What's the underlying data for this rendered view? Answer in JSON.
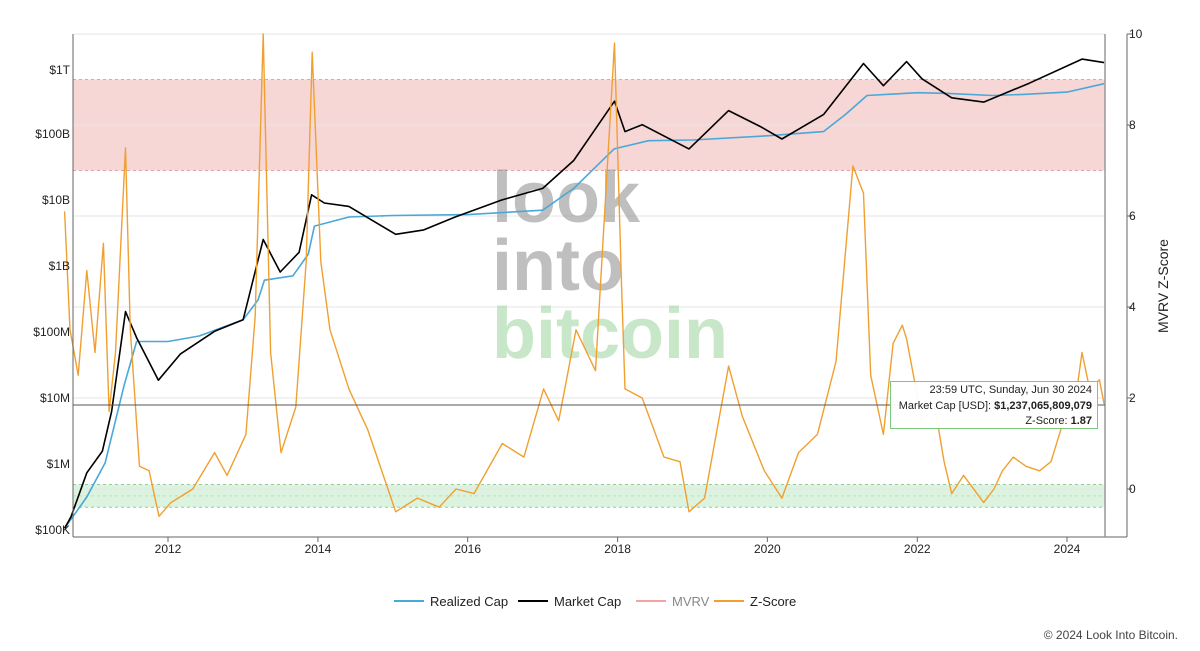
{
  "chart_data": {
    "type": "line",
    "x_ticks": [
      "2012",
      "2014",
      "2016",
      "2018",
      "2020",
      "2022",
      "2024"
    ],
    "y_left_ticks": [
      "$100K",
      "$1M",
      "$10M",
      "$100M",
      "$1B",
      "$10B",
      "$100B",
      "$1T"
    ],
    "y_left_scale": "log",
    "y_left_range": [
      100000,
      3000000000000
    ],
    "y_right_ticks": [
      "0",
      "2",
      "4",
      "6",
      "8",
      "10"
    ],
    "y_right_range": [
      -1,
      10
    ],
    "y_right_label": "MVRV Z-Score",
    "x_range": [
      "2010-08-15",
      "2024-08-20"
    ],
    "bands": [
      {
        "axis": "right",
        "from": 7,
        "to": 9,
        "color": "#f7d6d6"
      },
      {
        "axis": "right",
        "from": -0.4,
        "to": 0.1,
        "color": "#dcf3df"
      }
    ],
    "series": [
      {
        "name": "Realized Cap",
        "color": "#4aa8d8",
        "axis": "left",
        "points": [
          [
            "2010-08-15",
            100000
          ],
          [
            "2010-12-01",
            300000
          ],
          [
            "2011-03-01",
            1000000
          ],
          [
            "2011-06-01",
            15000000
          ],
          [
            "2011-08-01",
            70000000
          ],
          [
            "2012-01-01",
            70000000
          ],
          [
            "2012-06-01",
            85000000
          ],
          [
            "2013-01-01",
            150000000
          ],
          [
            "2013-03-15",
            300000000
          ],
          [
            "2013-04-15",
            600000000
          ],
          [
            "2013-09-01",
            700000000
          ],
          [
            "2013-11-15",
            1500000000
          ],
          [
            "2013-12-15",
            4000000000
          ],
          [
            "2014-06-01",
            5500000000
          ],
          [
            "2015-01-01",
            5800000000
          ],
          [
            "2016-01-01",
            6000000000
          ],
          [
            "2017-01-01",
            7000000000
          ],
          [
            "2017-06-01",
            15000000000
          ],
          [
            "2017-12-15",
            60000000000
          ],
          [
            "2018-06-01",
            80000000000
          ],
          [
            "2019-01-01",
            82000000000
          ],
          [
            "2020-01-01",
            95000000000
          ],
          [
            "2020-10-01",
            110000000000
          ],
          [
            "2021-01-15",
            200000000000
          ],
          [
            "2021-05-01",
            390000000000
          ],
          [
            "2022-01-01",
            430000000000
          ],
          [
            "2022-06-01",
            420000000000
          ],
          [
            "2023-01-01",
            390000000000
          ],
          [
            "2023-06-01",
            405000000000
          ],
          [
            "2024-01-01",
            440000000000
          ],
          [
            "2024-06-30",
            590000000000
          ]
        ]
      },
      {
        "name": "Market Cap",
        "color": "#000000",
        "axis": "left",
        "points": [
          [
            "2010-08-15",
            100000
          ],
          [
            "2010-09-15",
            150000
          ],
          [
            "2010-12-01",
            700000
          ],
          [
            "2011-02-15",
            1500000
          ],
          [
            "2011-04-01",
            6000000
          ],
          [
            "2011-06-08",
            200000000
          ],
          [
            "2011-08-01",
            80000000
          ],
          [
            "2011-11-15",
            18000000
          ],
          [
            "2012-03-01",
            45000000
          ],
          [
            "2012-08-15",
            100000000
          ],
          [
            "2013-01-01",
            150000000
          ],
          [
            "2013-04-09",
            2500000000
          ],
          [
            "2013-07-01",
            800000000
          ],
          [
            "2013-10-01",
            1600000000
          ],
          [
            "2013-12-01",
            12000000000
          ],
          [
            "2014-02-01",
            9000000000
          ],
          [
            "2014-06-01",
            8000000000
          ],
          [
            "2015-01-15",
            3000000000
          ],
          [
            "2015-06-01",
            3500000000
          ],
          [
            "2015-11-01",
            5500000000
          ],
          [
            "2016-06-15",
            10000000000
          ],
          [
            "2017-01-01",
            15000000000
          ],
          [
            "2017-06-01",
            40000000000
          ],
          [
            "2017-12-17",
            320000000000
          ],
          [
            "2018-02-06",
            110000000000
          ],
          [
            "2018-05-01",
            140000000000
          ],
          [
            "2018-12-15",
            60000000000
          ],
          [
            "2019-06-26",
            230000000000
          ],
          [
            "2019-12-01",
            130000000000
          ],
          [
            "2020-03-12",
            85000000000
          ],
          [
            "2020-10-01",
            200000000000
          ],
          [
            "2021-04-14",
            1200000000000
          ],
          [
            "2021-07-20",
            550000000000
          ],
          [
            "2021-11-10",
            1280000000000
          ],
          [
            "2022-01-24",
            700000000000
          ],
          [
            "2022-06-18",
            360000000000
          ],
          [
            "2022-11-21",
            310000000000
          ],
          [
            "2023-07-01",
            600000000000
          ],
          [
            "2024-03-14",
            1400000000000
          ],
          [
            "2024-06-30",
            1237065809079
          ]
        ]
      },
      {
        "name": "MVRV",
        "color": "#f4a3a3",
        "axis": "left",
        "hidden": true,
        "points": []
      },
      {
        "name": "Z-Score",
        "color": "#f0a030",
        "axis": "right",
        "points": [
          [
            "2010-08-15",
            6.1
          ],
          [
            "2010-09-10",
            3.5
          ],
          [
            "2010-10-20",
            2.5
          ],
          [
            "2010-12-01",
            4.8
          ],
          [
            "2011-01-10",
            3
          ],
          [
            "2011-02-20",
            5.4
          ],
          [
            "2011-03-20",
            1.7
          ],
          [
            "2011-04-20",
            3
          ],
          [
            "2011-06-08",
            7.5
          ],
          [
            "2011-07-01",
            3.5
          ],
          [
            "2011-08-15",
            0.5
          ],
          [
            "2011-10-01",
            0.4
          ],
          [
            "2011-11-18",
            -0.6
          ],
          [
            "2012-01-15",
            -0.3
          ],
          [
            "2012-05-01",
            0
          ],
          [
            "2012-08-15",
            0.8
          ],
          [
            "2012-10-15",
            0.3
          ],
          [
            "2013-01-15",
            1.2
          ],
          [
            "2013-03-01",
            3.8
          ],
          [
            "2013-04-09",
            10
          ],
          [
            "2013-05-15",
            3
          ],
          [
            "2013-07-05",
            0.8
          ],
          [
            "2013-09-15",
            1.8
          ],
          [
            "2013-11-05",
            5
          ],
          [
            "2013-12-04",
            9.6
          ],
          [
            "2014-01-15",
            5
          ],
          [
            "2014-03-01",
            3.5
          ],
          [
            "2014-06-01",
            2.2
          ],
          [
            "2014-09-01",
            1.3
          ],
          [
            "2015-01-15",
            -0.5
          ],
          [
            "2015-05-01",
            -0.2
          ],
          [
            "2015-08-15",
            -0.4
          ],
          [
            "2015-11-05",
            0
          ],
          [
            "2016-02-01",
            -0.1
          ],
          [
            "2016-06-18",
            1
          ],
          [
            "2016-10-01",
            0.7
          ],
          [
            "2017-01-05",
            2.2
          ],
          [
            "2017-03-20",
            1.5
          ],
          [
            "2017-06-12",
            3.5
          ],
          [
            "2017-09-15",
            2.6
          ],
          [
            "2017-12-17",
            9.8
          ],
          [
            "2018-01-20",
            4.5
          ],
          [
            "2018-02-06",
            2.2
          ],
          [
            "2018-05-01",
            2
          ],
          [
            "2018-08-15",
            0.7
          ],
          [
            "2018-11-01",
            0.6
          ],
          [
            "2018-12-15",
            -0.5
          ],
          [
            "2019-03-01",
            -0.2
          ],
          [
            "2019-06-26",
            2.7
          ],
          [
            "2019-09-01",
            1.6
          ],
          [
            "2019-12-17",
            0.4
          ],
          [
            "2020-03-12",
            -0.2
          ],
          [
            "2020-06-01",
            0.8
          ],
          [
            "2020-09-01",
            1.2
          ],
          [
            "2020-12-01",
            2.8
          ],
          [
            "2021-02-21",
            7.1
          ],
          [
            "2021-04-14",
            6.5
          ],
          [
            "2021-05-19",
            2.5
          ],
          [
            "2021-07-20",
            1.2
          ],
          [
            "2021-09-05",
            3.2
          ],
          [
            "2021-10-20",
            3.6
          ],
          [
            "2021-11-10",
            3.3
          ],
          [
            "2022-01-24",
            1.5
          ],
          [
            "2022-03-28",
            1.8
          ],
          [
            "2022-05-12",
            0.6
          ],
          [
            "2022-06-18",
            -0.1
          ],
          [
            "2022-08-15",
            0.3
          ],
          [
            "2022-11-21",
            -0.3
          ],
          [
            "2023-01-10",
            0
          ],
          [
            "2023-02-20",
            0.4
          ],
          [
            "2023-04-14",
            0.7
          ],
          [
            "2023-06-15",
            0.5
          ],
          [
            "2023-08-20",
            0.4
          ],
          [
            "2023-10-15",
            0.6
          ],
          [
            "2023-12-15",
            1.5
          ],
          [
            "2024-01-25",
            1.4
          ],
          [
            "2024-03-14",
            3
          ],
          [
            "2024-04-20",
            2.2
          ],
          [
            "2024-06-07",
            2.4
          ],
          [
            "2024-06-30",
            1.87
          ]
        ]
      }
    ],
    "tooltip": {
      "date": "23:59 UTC, Sunday, Jun 30 2024",
      "market_cap_label": "Market Cap [USD]:",
      "market_cap_value": "$1,237,065,809,079",
      "zscore_label": "Z-Score:",
      "zscore_value": "1.87"
    }
  },
  "watermark": {
    "line1": "look",
    "line2": "into",
    "line3": "bitcoin"
  },
  "legend": [
    {
      "name": "Realized Cap",
      "color": "#4aa8d8",
      "active": true
    },
    {
      "name": "Market Cap",
      "color": "#000000",
      "active": true
    },
    {
      "name": "MVRV",
      "color": "#f4a3a3",
      "active": false
    },
    {
      "name": "Z-Score",
      "color": "#f0a030",
      "active": true
    }
  ],
  "copyright": "© 2024 Look Into Bitcoin."
}
